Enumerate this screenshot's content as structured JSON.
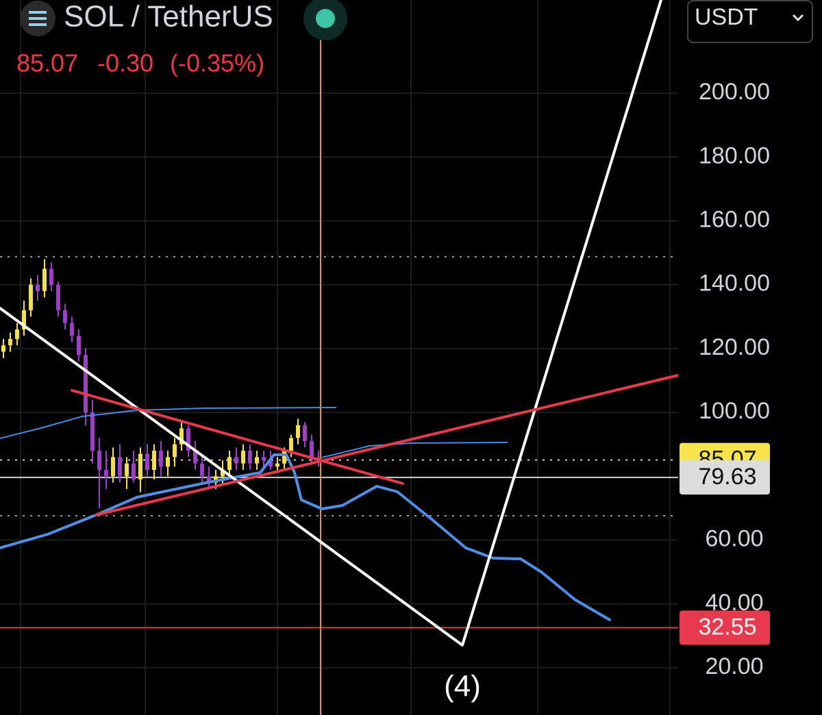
{
  "header": {
    "symbol": "SOL / TetherUS",
    "last": "85.07",
    "change": "-0.30",
    "change_pct": "(-0.35%)",
    "currency": "USDT"
  },
  "chart_data": {
    "type": "candlestick",
    "annotation": "(4)",
    "categories": [
      null,
      null,
      null,
      null,
      null,
      null,
      null,
      null,
      null,
      null,
      null,
      null,
      null,
      null,
      null,
      null,
      null,
      null,
      null,
      null,
      null,
      null,
      null,
      null,
      null,
      null,
      null,
      null,
      null,
      null,
      null,
      null,
      null,
      null,
      null,
      null,
      null,
      null,
      null,
      null,
      null,
      null,
      null,
      null,
      null,
      null,
      null
    ],
    "open": [
      119,
      121,
      123,
      126,
      132,
      140,
      138,
      145,
      140,
      132,
      128,
      124,
      118,
      100,
      88,
      82,
      80,
      86,
      80,
      84,
      79,
      87,
      82,
      88,
      83,
      86,
      90,
      95,
      88,
      84,
      80,
      78,
      80,
      82,
      86,
      84,
      88,
      84,
      86,
      85,
      83,
      84,
      88,
      92,
      96,
      91,
      86
    ],
    "high": [
      123,
      125,
      128,
      135,
      142,
      143,
      148,
      147,
      141,
      134,
      130,
      126,
      120,
      104,
      92,
      88,
      89,
      90,
      86,
      88,
      89,
      90,
      90,
      91,
      88,
      92,
      97,
      96,
      91,
      87,
      83,
      82,
      85,
      88,
      89,
      90,
      90,
      88,
      88,
      88,
      86,
      89,
      93,
      98,
      97,
      93,
      88
    ],
    "low": [
      117,
      119,
      121,
      124,
      130,
      135,
      136,
      138,
      130,
      126,
      122,
      116,
      96,
      84,
      70,
      76,
      78,
      78,
      76,
      78,
      75,
      80,
      79,
      80,
      80,
      83,
      88,
      86,
      82,
      78,
      76,
      76,
      77,
      80,
      82,
      82,
      82,
      82,
      83,
      82,
      81,
      82,
      86,
      90,
      89,
      84,
      83
    ],
    "close": [
      121,
      123,
      126,
      132,
      140,
      138,
      145,
      140,
      132,
      128,
      124,
      118,
      100,
      88,
      82,
      80,
      86,
      80,
      84,
      79,
      87,
      82,
      88,
      83,
      86,
      90,
      95,
      88,
      84,
      80,
      78,
      80,
      82,
      86,
      84,
      88,
      84,
      86,
      85,
      83,
      84,
      88,
      92,
      96,
      91,
      86,
      85
    ],
    "up_color": "#f5e04a",
    "down_color": "#9c3fc4",
    "ylim": [
      5.2,
      229.2
    ],
    "yticks": [
      {
        "value": 20,
        "label": "20.00"
      },
      {
        "value": 40,
        "label": "40.00"
      },
      {
        "value": 60,
        "label": "60.00"
      },
      {
        "value": 100,
        "label": "100.00"
      },
      {
        "value": 120,
        "label": "120.00"
      },
      {
        "value": 140,
        "label": "140.00"
      },
      {
        "value": 160,
        "label": "160.00"
      },
      {
        "value": 180,
        "label": "180.00"
      },
      {
        "value": 200,
        "label": "200.00"
      }
    ],
    "grid": true,
    "price_lines": [
      {
        "value": 85.07,
        "color": "#f7e34a",
        "text_color": "#111111",
        "line_color": "#cccccc",
        "dotted": true
      },
      {
        "value": 79.63,
        "color": "#dcdcdc",
        "text_color": "#111111",
        "line_color": "#d0d0d0",
        "dotted": false
      },
      {
        "value": 32.55,
        "color": "#e8394d",
        "text_color": "#ffffff",
        "line_color": "#e8394d",
        "dotted": false
      }
    ]
  }
}
